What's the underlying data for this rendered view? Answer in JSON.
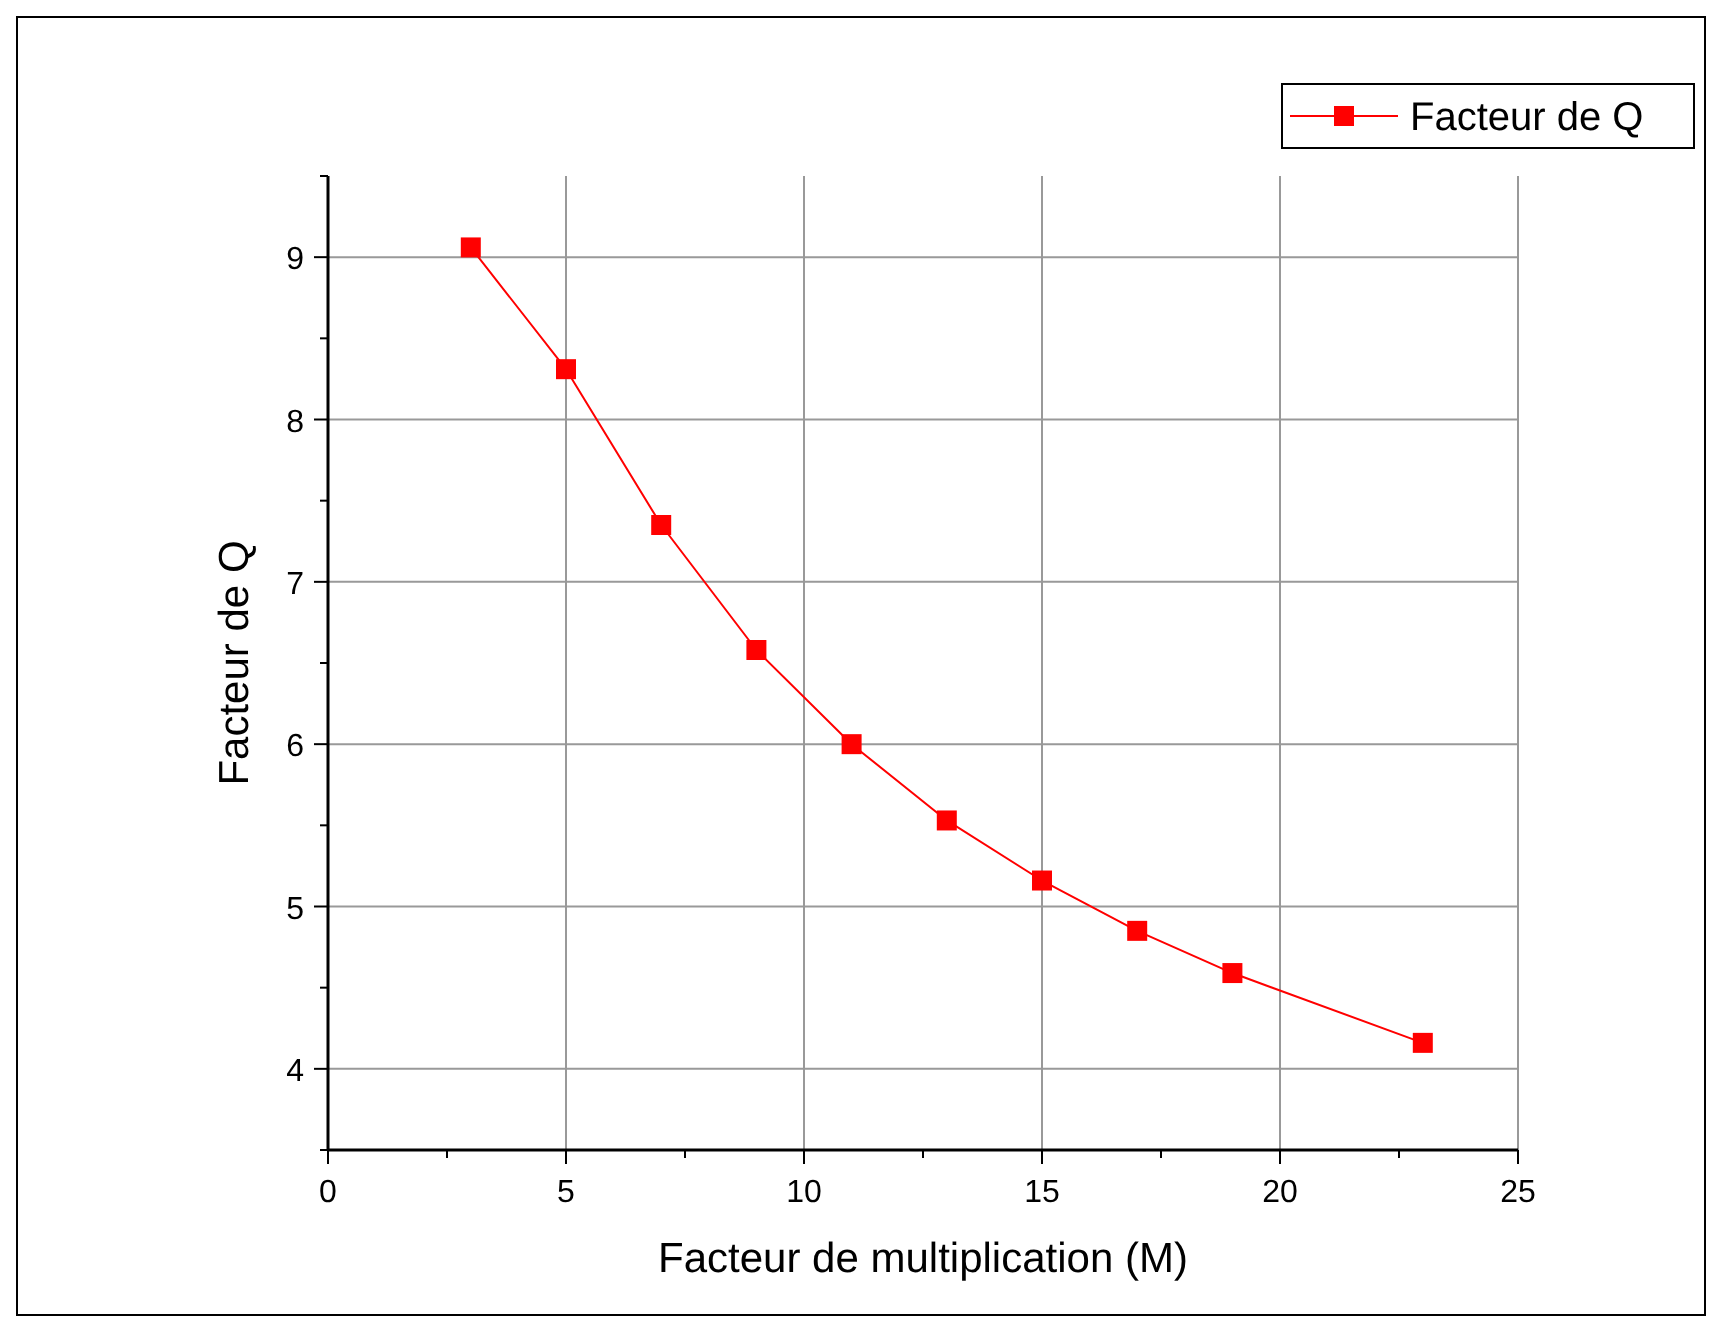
{
  "chart_data": {
    "type": "line",
    "xlabel": "Facteur de multiplication (M)",
    "ylabel": "Facteur de Q",
    "x": [
      3,
      5,
      7,
      9,
      11,
      13,
      15,
      17,
      19,
      23
    ],
    "series": [
      {
        "name": "Facteur de Q",
        "color": "#ff0000",
        "values": [
          9.06,
          8.31,
          7.35,
          6.58,
          6.0,
          5.53,
          5.16,
          4.85,
          4.59,
          4.16
        ]
      }
    ],
    "xlim": [
      0,
      25
    ],
    "xticks": [
      0,
      {
        "value": 2.5,
        "label": null
      },
      5,
      {
        "value": 7.5,
        "label": null
      },
      10,
      {
        "value": 12.5,
        "label": null
      },
      15,
      {
        "value": 17.5,
        "label": null
      },
      20,
      {
        "value": 22.5,
        "label": null
      },
      25
    ],
    "ylim": [
      3.5,
      9.5
    ],
    "yticks": [
      {
        "value": 3.5,
        "label": null
      },
      4,
      {
        "value": 4.5,
        "label": null
      },
      5,
      {
        "value": 5.5,
        "label": null
      },
      6,
      {
        "value": 6.5,
        "label": null
      },
      7,
      {
        "value": 7.5,
        "label": null
      },
      8,
      {
        "value": 8.5,
        "label": null
      },
      9,
      {
        "value": 9.5,
        "label": null
      }
    ],
    "grid": true,
    "legend": "top right",
    "marker": "square",
    "line_style": "solid"
  }
}
